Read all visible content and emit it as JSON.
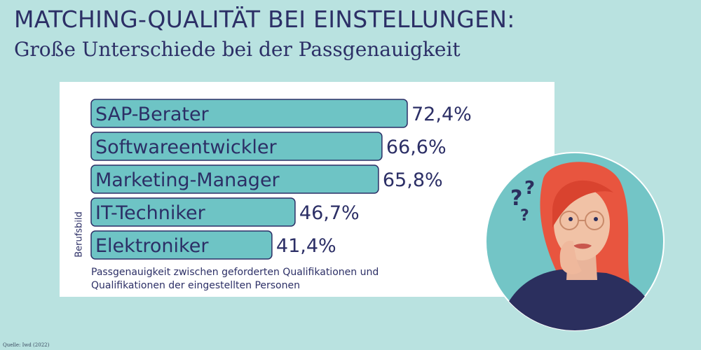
{
  "header": {
    "title": "MATCHING-QUALITÄT BEI EINSTELLUNGEN:",
    "subtitle": "Große Unterschiede bei der Passgenauigkeit"
  },
  "chart_data": {
    "type": "bar",
    "orientation": "horizontal",
    "categories": [
      "SAP-Berater",
      "Softwareentwickler",
      "Marketing-Manager",
      "IT-Techniker",
      "Elektroniker"
    ],
    "values": [
      72.4,
      66.6,
      65.8,
      46.7,
      41.4
    ],
    "value_labels": [
      "72,4%",
      "66,6%",
      "65,8%",
      "46,7%",
      "41,4%"
    ],
    "ylabel": "Berufsbild",
    "note": "Passgenauigkeit zwischen geforderten Qualifikationen und Qualifikationen der eingestellten Personen",
    "xlim": [
      0,
      100
    ],
    "grid": false,
    "bar_color": "#6ec4c5",
    "bar_stroke": "#2c2f66"
  },
  "footer": {
    "source": "Quelle: Iwd (2022)"
  },
  "colors": {
    "background": "#b9e2e0",
    "text": "#2c2f66",
    "circle": "#73c5c6"
  }
}
